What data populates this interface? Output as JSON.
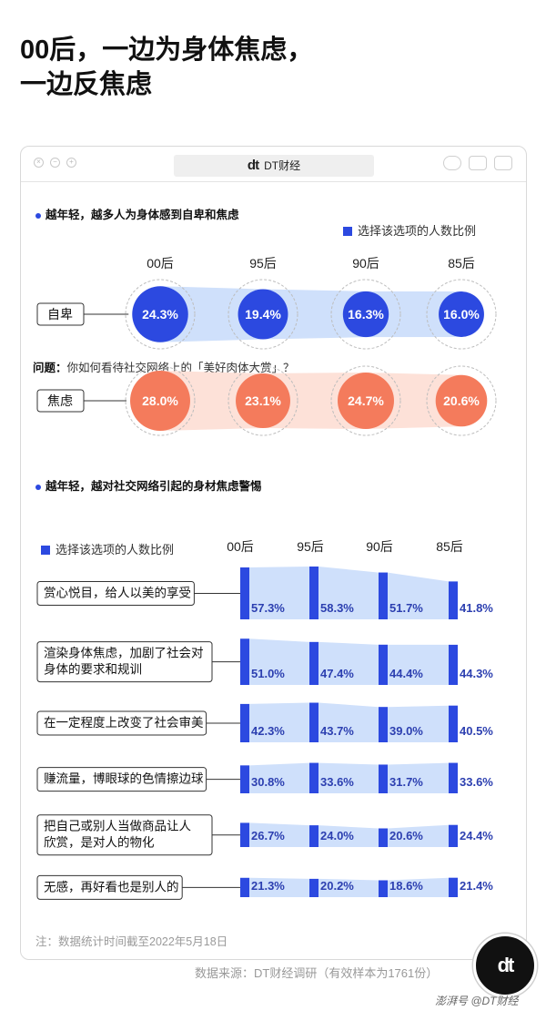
{
  "title_line1": "00后，一边为身体焦虑，",
  "title_line2": "一边反焦虑",
  "window": {
    "brand_logo": "dt",
    "brand_name": "DT财经"
  },
  "section1": {
    "title": "越年轻，越多人为身体感到自卑和焦虑",
    "legend": "选择该选项的人数比例"
  },
  "section2": {
    "title": "越年轻，越对社交网络引起的身材焦虑警惕",
    "question_label": "问题：",
    "question_text": "你如何看待社交网络上的「美好肉体大赏」？",
    "legend": "选择该选项的人数比例"
  },
  "note": "注：数据统计时间截至2022年5月18日",
  "source": "数据来源：DT财经调研（有效样本为1761份）",
  "badge": "dt",
  "footer": "澎湃号 @DT财经",
  "colors": {
    "blue": "#2c49e0",
    "blue_light": "#cfe0fb",
    "orange": "#f47b5c",
    "orange_light": "#fde1d8"
  },
  "chart_data": [
    {
      "type": "bubble",
      "categories": [
        "00后",
        "95后",
        "90后",
        "85后"
      ],
      "series": [
        {
          "name": "自卑",
          "values": [
            24.3,
            19.4,
            16.3,
            16.0
          ],
          "labels": [
            "24.3%",
            "19.4%",
            "16.3%",
            "16.0%"
          ]
        },
        {
          "name": "焦虑",
          "values": [
            28.0,
            23.1,
            24.7,
            20.6
          ],
          "labels": [
            "28.0%",
            "23.1%",
            "24.7%",
            "20.6%"
          ]
        }
      ]
    },
    {
      "type": "bar",
      "categories": [
        "00后",
        "95后",
        "90后",
        "85后"
      ],
      "series": [
        {
          "name": [
            "赏心悦目，给人以美的享受"
          ],
          "values": [
            57.3,
            58.3,
            51.7,
            41.8
          ],
          "labels": [
            "57.3%",
            "58.3%",
            "51.7%",
            "41.8%"
          ]
        },
        {
          "name": [
            "渲染身体焦虑，加剧了社会对",
            "身体的要求和规训"
          ],
          "values": [
            51.0,
            47.4,
            44.4,
            44.3
          ],
          "labels": [
            "51.0%",
            "47.4%",
            "44.4%",
            "44.3%"
          ]
        },
        {
          "name": [
            "在一定程度上改变了社会审美"
          ],
          "values": [
            42.3,
            43.7,
            39.0,
            40.5
          ],
          "labels": [
            "42.3%",
            "43.7%",
            "39.0%",
            "40.5%"
          ]
        },
        {
          "name": [
            "赚流量，博眼球的色情擦边球"
          ],
          "values": [
            30.8,
            33.6,
            31.7,
            33.6
          ],
          "labels": [
            "30.8%",
            "33.6%",
            "31.7%",
            "33.6%"
          ]
        },
        {
          "name": [
            "把自己或别人当做商品让人",
            "欣赏，是对人的物化"
          ],
          "values": [
            26.7,
            24.0,
            20.6,
            24.4
          ],
          "labels": [
            "26.7%",
            "24.0%",
            "20.6%",
            "24.4%"
          ]
        },
        {
          "name": [
            "无感，再好看也是别人的"
          ],
          "values": [
            21.3,
            20.2,
            18.6,
            21.4
          ],
          "labels": [
            "21.3%",
            "20.2%",
            "18.6%",
            "21.4%"
          ]
        }
      ]
    }
  ]
}
